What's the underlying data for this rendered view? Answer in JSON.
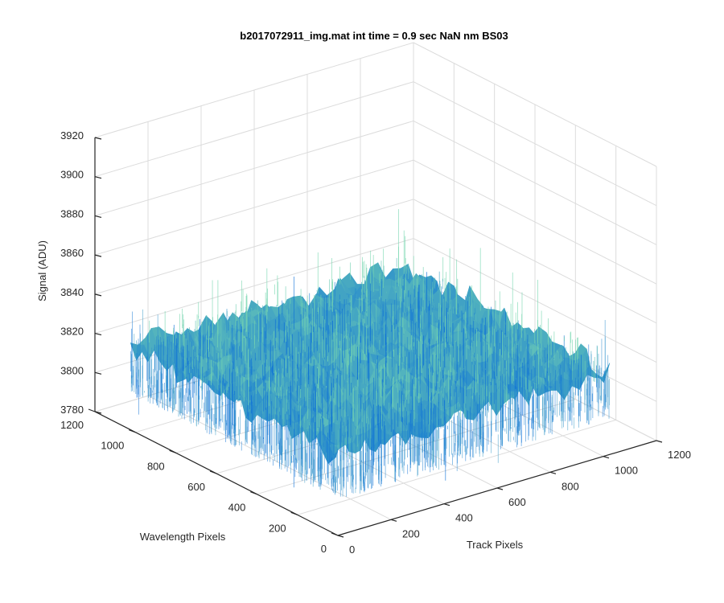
{
  "chart_data": {
    "type": "surface",
    "title": "b2017072911_img.mat int time = 0.9 sec  NaN nm BS03",
    "xlabel": "Track Pixels",
    "ylabel": "Wavelength Pixels",
    "zlabel": "Signal (ADU)",
    "xlim": [
      0,
      1200
    ],
    "ylim": [
      0,
      1200
    ],
    "zlim": [
      3780,
      3920
    ],
    "x_ticks": [
      "0",
      "200",
      "400",
      "600",
      "800",
      "1000",
      "1200"
    ],
    "y_ticks": [
      "0",
      "200",
      "400",
      "600",
      "800",
      "1000",
      "1200"
    ],
    "z_ticks": [
      "3780",
      "3800",
      "3820",
      "3840",
      "3860",
      "3880",
      "3900",
      "3920"
    ],
    "surface": {
      "x_range": [
        0,
        1024
      ],
      "y_range": [
        0,
        1024
      ],
      "mean_signal": 3822,
      "noise_spread_adu": 12
    },
    "grid": true,
    "colormap": "parula",
    "colors": {
      "low": "#0a6fd8",
      "mid": "#1aa5c7",
      "high": "#7fd6b2"
    }
  }
}
